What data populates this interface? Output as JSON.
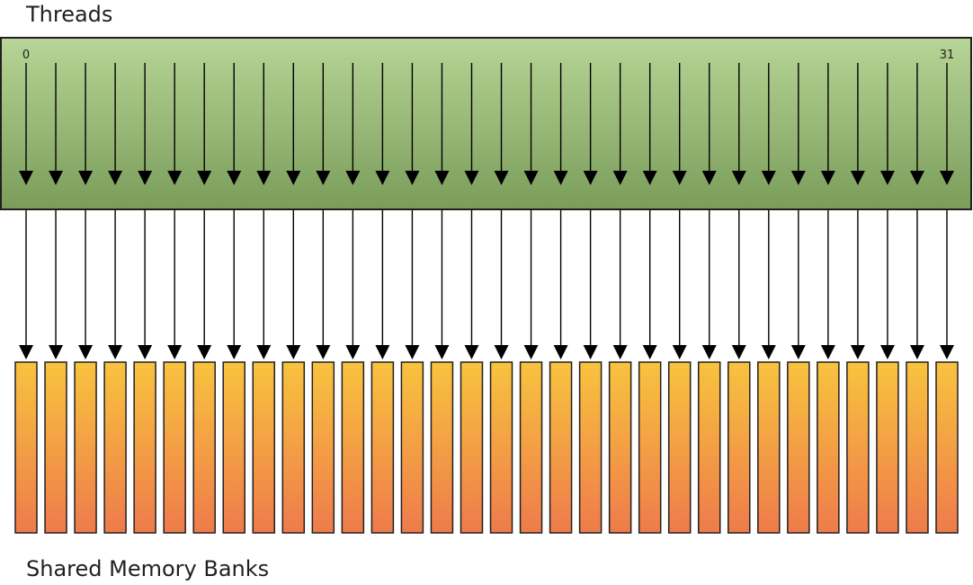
{
  "diagram": {
    "threads_label": "Threads",
    "banks_label": "Shared Memory Banks",
    "first_thread_index": "0",
    "last_thread_index": "31",
    "thread_count": 32,
    "bank_count": 32,
    "mapping": "one-to-one",
    "colors": {
      "thread_block_top": "#b7d596",
      "thread_block_bottom": "#7a9d5a",
      "bank_top": "#f8c33e",
      "bank_bottom": "#ee7b4b",
      "outline": "#231f20",
      "arrow": "#000000"
    }
  }
}
